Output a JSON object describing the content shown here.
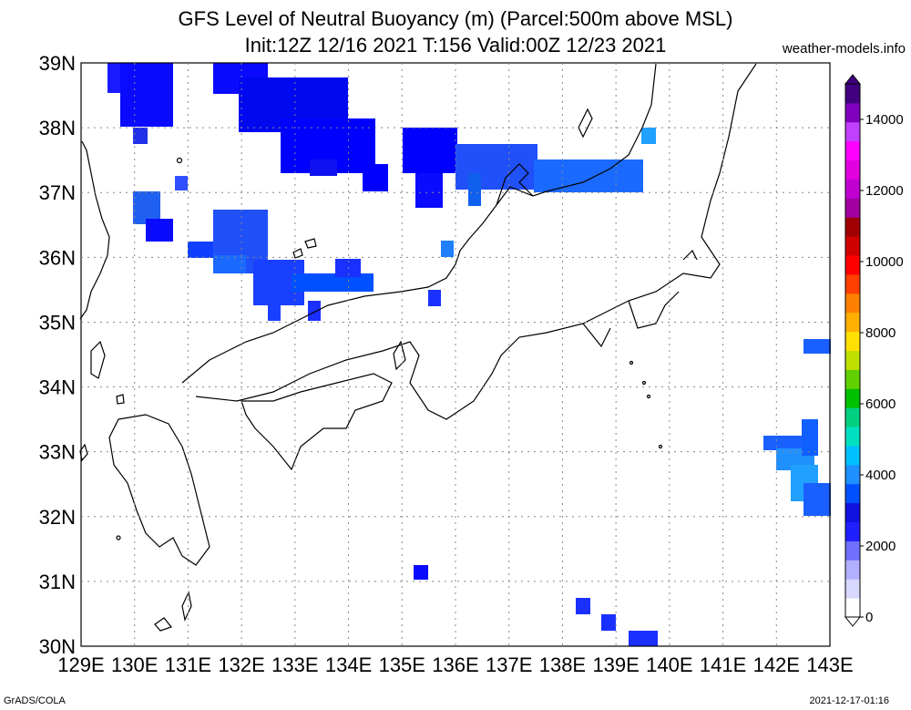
{
  "title_line1": "GFS Level of Neutral Buoyancy (m) (Parcel:500m above MSL)",
  "title_line2": "Init:12Z 12/16 2021 T:156 Valid:00Z 12/23 2021",
  "website": "weather-models.info",
  "footer_left": "GrADS/COLA",
  "footer_right": "2021-12-17-01:16",
  "map": {
    "lat_labels": [
      "39N",
      "38N",
      "37N",
      "36N",
      "35N",
      "34N",
      "33N",
      "32N",
      "31N",
      "30N"
    ],
    "lon_labels": [
      "129E",
      "130E",
      "131E",
      "132E",
      "133E",
      "134E",
      "135E",
      "136E",
      "137E",
      "138E",
      "139E",
      "140E",
      "141E",
      "142E",
      "143E"
    ],
    "grid": "dotted"
  },
  "colorbar": {
    "labels": [
      "0",
      "2000",
      "4000",
      "6000",
      "8000",
      "10000",
      "12000",
      "14000"
    ],
    "colors": [
      "#ffffff",
      "#d8d8ff",
      "#b0b0ff",
      "#7070ff",
      "#2020ff",
      "#1010e0",
      "#0050ff",
      "#1e90ff",
      "#00c0ff",
      "#00e0c0",
      "#00d080",
      "#00c000",
      "#60d000",
      "#c0e000",
      "#ffe000",
      "#ffb000",
      "#ff8000",
      "#ff4000",
      "#ff0000",
      "#d00000",
      "#a00000",
      "#a000a0",
      "#c000d0",
      "#e000e0",
      "#ff00ff",
      "#c040ff",
      "#8000c0",
      "#400080"
    ]
  }
}
